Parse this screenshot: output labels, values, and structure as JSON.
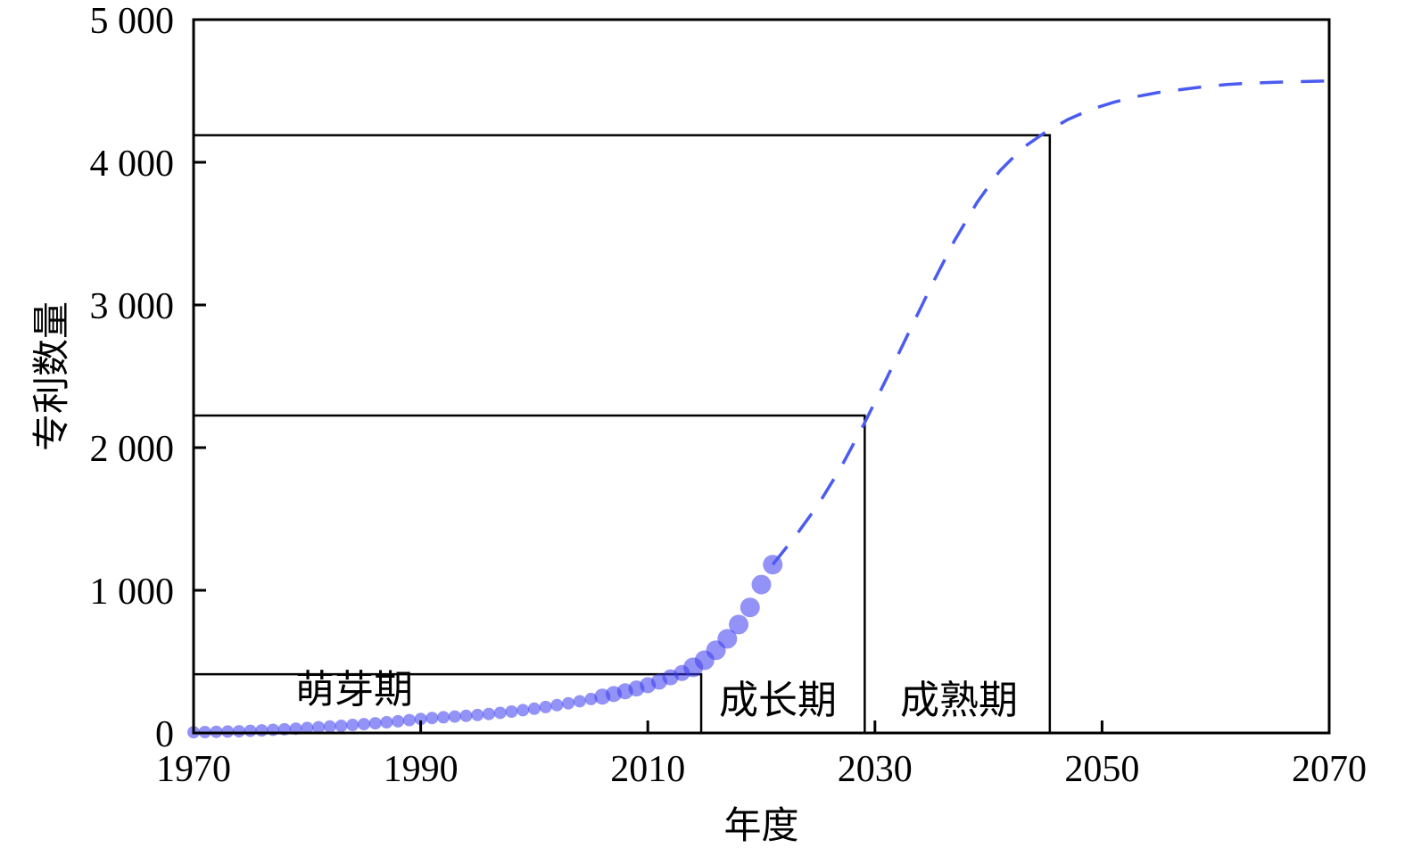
{
  "chart_data": {
    "type": "scatter",
    "xlabel": "年度",
    "ylabel": "专利数量",
    "xlim": [
      1970,
      2070
    ],
    "ylim": [
      0,
      5000
    ],
    "x_ticks": [
      1970,
      1990,
      2010,
      2030,
      2050,
      2070
    ],
    "x_tick_labels": [
      "1970",
      "1990",
      "2010",
      "2030",
      "2050",
      "2070"
    ],
    "y_ticks": [
      0,
      1000,
      2000,
      3000,
      4000,
      5000
    ],
    "y_tick_labels": [
      "0",
      "1 000",
      "2 000",
      "3 000",
      "4 000",
      "5 000"
    ],
    "grid": false,
    "colors": {
      "points": "#3b3bf0",
      "curve": "#4a5bf0",
      "frame": "#000000"
    },
    "series": [
      {
        "kind": "points",
        "x": [
          1970,
          1971,
          1972,
          1973,
          1974,
          1975,
          1976,
          1977,
          1978,
          1979,
          1980,
          1981,
          1982,
          1983,
          1984,
          1985,
          1986,
          1987,
          1988,
          1989,
          1990,
          1991,
          1992,
          1993,
          1994,
          1995,
          1996,
          1997,
          1998,
          1999,
          2000,
          2001,
          2002,
          2003,
          2004,
          2005,
          2006,
          2007,
          2008,
          2009,
          2010,
          2011,
          2012,
          2013,
          2014,
          2015,
          2016,
          2017,
          2018,
          2019,
          2020,
          2021
        ],
        "y": [
          5,
          6,
          8,
          10,
          12,
          15,
          18,
          22,
          26,
          30,
          35,
          40,
          45,
          50,
          56,
          62,
          68,
          75,
          82,
          90,
          98,
          105,
          110,
          115,
          120,
          126,
          133,
          141,
          150,
          160,
          170,
          182,
          195,
          208,
          222,
          238,
          255,
          273,
          292,
          312,
          335,
          360,
          390,
          420,
          460,
          510,
          580,
          660,
          760,
          880,
          1040,
          1180
        ]
      },
      {
        "kind": "fitted-curve",
        "x": [
          2021,
          2023,
          2025,
          2027,
          2029,
          2031,
          2033,
          2035,
          2037,
          2039,
          2041,
          2043,
          2045,
          2047,
          2049,
          2051,
          2053,
          2055,
          2057,
          2059,
          2061,
          2063,
          2065,
          2067,
          2070
        ],
        "y": [
          1180,
          1380,
          1600,
          1860,
          2160,
          2480,
          2810,
          3140,
          3450,
          3720,
          3940,
          4100,
          4210,
          4300,
          4370,
          4420,
          4460,
          4490,
          4510,
          4530,
          4545,
          4555,
          4560,
          4565,
          4570
        ]
      }
    ],
    "stages": [
      {
        "label": "萌芽期",
        "x_end": 2014.7,
        "y": 412
      },
      {
        "label": "成长期",
        "x_end": 2029.1,
        "y": 2225
      },
      {
        "label": "成熟期",
        "x_end": 2045.4,
        "y": 4190
      }
    ]
  }
}
